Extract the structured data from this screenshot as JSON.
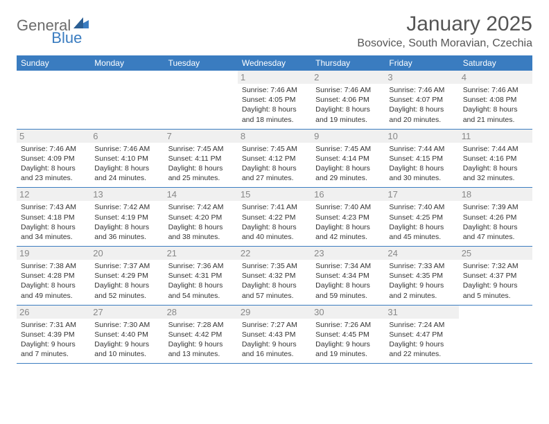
{
  "brand": {
    "name_a": "General",
    "name_b": "Blue"
  },
  "title": "January 2025",
  "location": "Bosovice, South Moravian, Czechia",
  "colors": {
    "accent": "#3a7cc0",
    "header_text": "#ffffff",
    "bg": "#ffffff",
    "daynum_bg": "#f0f0f0",
    "daynum_text": "#888888",
    "body_text": "#333333",
    "logo_gray": "#6b6b6b"
  },
  "day_names": [
    "Sunday",
    "Monday",
    "Tuesday",
    "Wednesday",
    "Thursday",
    "Friday",
    "Saturday"
  ],
  "weeks": [
    [
      null,
      null,
      null,
      {
        "n": "1",
        "sr": "7:46 AM",
        "ss": "4:05 PM",
        "dlh": "8",
        "dlm": "18"
      },
      {
        "n": "2",
        "sr": "7:46 AM",
        "ss": "4:06 PM",
        "dlh": "8",
        "dlm": "19"
      },
      {
        "n": "3",
        "sr": "7:46 AM",
        "ss": "4:07 PM",
        "dlh": "8",
        "dlm": "20"
      },
      {
        "n": "4",
        "sr": "7:46 AM",
        "ss": "4:08 PM",
        "dlh": "8",
        "dlm": "21"
      }
    ],
    [
      {
        "n": "5",
        "sr": "7:46 AM",
        "ss": "4:09 PM",
        "dlh": "8",
        "dlm": "23"
      },
      {
        "n": "6",
        "sr": "7:46 AM",
        "ss": "4:10 PM",
        "dlh": "8",
        "dlm": "24"
      },
      {
        "n": "7",
        "sr": "7:45 AM",
        "ss": "4:11 PM",
        "dlh": "8",
        "dlm": "25"
      },
      {
        "n": "8",
        "sr": "7:45 AM",
        "ss": "4:12 PM",
        "dlh": "8",
        "dlm": "27"
      },
      {
        "n": "9",
        "sr": "7:45 AM",
        "ss": "4:14 PM",
        "dlh": "8",
        "dlm": "29"
      },
      {
        "n": "10",
        "sr": "7:44 AM",
        "ss": "4:15 PM",
        "dlh": "8",
        "dlm": "30"
      },
      {
        "n": "11",
        "sr": "7:44 AM",
        "ss": "4:16 PM",
        "dlh": "8",
        "dlm": "32"
      }
    ],
    [
      {
        "n": "12",
        "sr": "7:43 AM",
        "ss": "4:18 PM",
        "dlh": "8",
        "dlm": "34"
      },
      {
        "n": "13",
        "sr": "7:42 AM",
        "ss": "4:19 PM",
        "dlh": "8",
        "dlm": "36"
      },
      {
        "n": "14",
        "sr": "7:42 AM",
        "ss": "4:20 PM",
        "dlh": "8",
        "dlm": "38"
      },
      {
        "n": "15",
        "sr": "7:41 AM",
        "ss": "4:22 PM",
        "dlh": "8",
        "dlm": "40"
      },
      {
        "n": "16",
        "sr": "7:40 AM",
        "ss": "4:23 PM",
        "dlh": "8",
        "dlm": "42"
      },
      {
        "n": "17",
        "sr": "7:40 AM",
        "ss": "4:25 PM",
        "dlh": "8",
        "dlm": "45"
      },
      {
        "n": "18",
        "sr": "7:39 AM",
        "ss": "4:26 PM",
        "dlh": "8",
        "dlm": "47"
      }
    ],
    [
      {
        "n": "19",
        "sr": "7:38 AM",
        "ss": "4:28 PM",
        "dlh": "8",
        "dlm": "49"
      },
      {
        "n": "20",
        "sr": "7:37 AM",
        "ss": "4:29 PM",
        "dlh": "8",
        "dlm": "52"
      },
      {
        "n": "21",
        "sr": "7:36 AM",
        "ss": "4:31 PM",
        "dlh": "8",
        "dlm": "54"
      },
      {
        "n": "22",
        "sr": "7:35 AM",
        "ss": "4:32 PM",
        "dlh": "8",
        "dlm": "57"
      },
      {
        "n": "23",
        "sr": "7:34 AM",
        "ss": "4:34 PM",
        "dlh": "8",
        "dlm": "59"
      },
      {
        "n": "24",
        "sr": "7:33 AM",
        "ss": "4:35 PM",
        "dlh": "9",
        "dlm": "2"
      },
      {
        "n": "25",
        "sr": "7:32 AM",
        "ss": "4:37 PM",
        "dlh": "9",
        "dlm": "5"
      }
    ],
    [
      {
        "n": "26",
        "sr": "7:31 AM",
        "ss": "4:39 PM",
        "dlh": "9",
        "dlm": "7"
      },
      {
        "n": "27",
        "sr": "7:30 AM",
        "ss": "4:40 PM",
        "dlh": "9",
        "dlm": "10"
      },
      {
        "n": "28",
        "sr": "7:28 AM",
        "ss": "4:42 PM",
        "dlh": "9",
        "dlm": "13"
      },
      {
        "n": "29",
        "sr": "7:27 AM",
        "ss": "4:43 PM",
        "dlh": "9",
        "dlm": "16"
      },
      {
        "n": "30",
        "sr": "7:26 AM",
        "ss": "4:45 PM",
        "dlh": "9",
        "dlm": "19"
      },
      {
        "n": "31",
        "sr": "7:24 AM",
        "ss": "4:47 PM",
        "dlh": "9",
        "dlm": "22"
      },
      null
    ]
  ]
}
